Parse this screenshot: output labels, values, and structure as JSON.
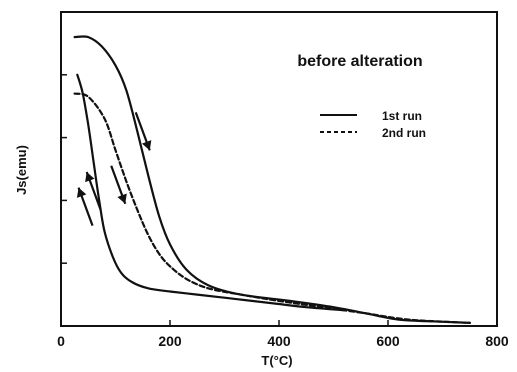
{
  "chart_data": {
    "type": "line",
    "title": "",
    "annotation": "before alteration",
    "xlabel": "T(°C)",
    "ylabel": "Js(emu)",
    "xlim": [
      0,
      800
    ],
    "ylim": [
      0,
      1
    ],
    "x_ticks": [
      "0",
      "200",
      "400",
      "600",
      "800"
    ],
    "y_tick_labels_shown": false,
    "grid": false,
    "legend_position": "top-right",
    "series": [
      {
        "name": "1st run",
        "style": "solid",
        "segments": [
          {
            "direction": "heating",
            "points": [
              [
                25,
                0.92
              ],
              [
                50,
                0.92
              ],
              [
                75,
                0.89
              ],
              [
                100,
                0.83
              ],
              [
                120,
                0.75
              ],
              [
                140,
                0.62
              ],
              [
                160,
                0.48
              ],
              [
                180,
                0.35
              ],
              [
                200,
                0.26
              ],
              [
                230,
                0.18
              ],
              [
                270,
                0.13
              ],
              [
                330,
                0.1
              ],
              [
                420,
                0.08
              ],
              [
                500,
                0.06
              ],
              [
                560,
                0.04
              ],
              [
                620,
                0.02
              ],
              [
                680,
                0.015
              ],
              [
                750,
                0.01
              ]
            ]
          },
          {
            "direction": "cooling",
            "points": [
              [
                520,
                0.05
              ],
              [
                450,
                0.06
              ],
              [
                400,
                0.07
              ],
              [
                350,
                0.08
              ],
              [
                300,
                0.09
              ],
              [
                250,
                0.1
              ],
              [
                200,
                0.11
              ],
              [
                160,
                0.12
              ],
              [
                130,
                0.14
              ],
              [
                110,
                0.17
              ],
              [
                95,
                0.22
              ],
              [
                80,
                0.3
              ],
              [
                70,
                0.4
              ],
              [
                60,
                0.52
              ],
              [
                50,
                0.64
              ],
              [
                40,
                0.74
              ],
              [
                30,
                0.8
              ]
            ]
          }
        ]
      },
      {
        "name": "2nd run",
        "style": "dashed",
        "segments": [
          {
            "direction": "heating",
            "points": [
              [
                25,
                0.74
              ],
              [
                50,
                0.73
              ],
              [
                80,
                0.66
              ],
              [
                100,
                0.56
              ],
              [
                120,
                0.46
              ],
              [
                140,
                0.37
              ],
              [
                160,
                0.29
              ],
              [
                180,
                0.23
              ],
              [
                200,
                0.19
              ],
              [
                230,
                0.15
              ],
              [
                270,
                0.12
              ],
              [
                330,
                0.1
              ],
              [
                400,
                0.08
              ],
              [
                480,
                0.06
              ],
              [
                560,
                0.04
              ],
              [
                640,
                0.02
              ],
              [
                750,
                0.01
              ]
            ]
          }
        ]
      }
    ],
    "arrows": [
      {
        "x": 150,
        "y": 0.62,
        "direction": "down"
      },
      {
        "x": 105,
        "y": 0.45,
        "direction": "down"
      },
      {
        "x": 45,
        "y": 0.38,
        "direction": "up"
      },
      {
        "x": 60,
        "y": 0.43,
        "direction": "up"
      }
    ]
  }
}
